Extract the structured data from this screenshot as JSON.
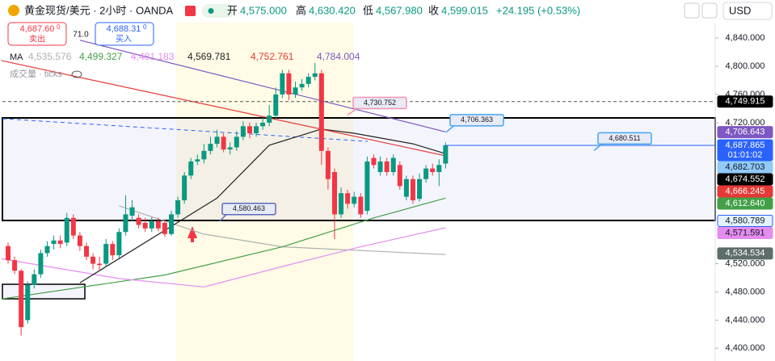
{
  "chart_data": {
    "type": "candlestick",
    "title": "黄金现货/美元 · 2小时 · OANDA",
    "ohlc_header": [
      {
        "key": "开",
        "value": "4,575.000"
      },
      {
        "key": "高",
        "value": "4,630.420"
      },
      {
        "key": "低",
        "value": "4,567.980"
      },
      {
        "key": "收",
        "value": "4,599.015"
      }
    ],
    "change": "+24.195 (+0.53%)",
    "sell": {
      "price": "4,687.60",
      "sup": "0",
      "label": "卖出"
    },
    "spread": "71.0",
    "buy": {
      "price": "4,688.31",
      "sup": "0",
      "label": "买入"
    },
    "currency": "USD",
    "indicator_label": "MA",
    "volume_label": "成交量 · ticks",
    "up_color": "#089981",
    "down_color": "#f23645",
    "ylim": [
      4382,
      4894
    ],
    "yticks": [
      {
        "value": 4840,
        "label": "4,840.000"
      },
      {
        "value": 4800,
        "label": "4,800.000"
      },
      {
        "value": 4760,
        "label": "4,760.000"
      },
      {
        "value": 4720,
        "label": "4,720.000"
      },
      {
        "value": 4520,
        "label": "4,520.000"
      },
      {
        "value": 4480,
        "label": "4,480.000"
      },
      {
        "value": 4440,
        "label": "4,440.000"
      },
      {
        "value": 4400,
        "label": "4,400.000"
      }
    ],
    "open": [
      4545,
      4525,
      4510,
      4440,
      4490,
      4505,
      4535,
      4548,
      4553,
      4550,
      4585,
      4560,
      4545,
      4530,
      4520,
      4520,
      4548,
      4532,
      4565,
      4588,
      4585,
      4578,
      4570,
      4580,
      4578,
      4562,
      4590,
      4610,
      4645,
      4665,
      4668,
      4680,
      4690,
      4700,
      4682,
      4685,
      4700,
      4715,
      4705,
      4715,
      4720,
      4730,
      4760,
      4790,
      4760,
      4770,
      4775,
      4785,
      4790,
      4680,
      4650,
      4590,
      4620,
      4605,
      4615,
      4595,
      4670,
      4650,
      4665,
      4650,
      4660,
      4615,
      4640,
      4612,
      4640,
      4655,
      4650,
      4662
    ],
    "high": [
      4550,
      4530,
      4512,
      4495,
      4512,
      4540,
      4552,
      4560,
      4560,
      4592,
      4590,
      4565,
      4550,
      4535,
      4530,
      4555,
      4552,
      4570,
      4617,
      4610,
      4590,
      4585,
      4586,
      4585,
      4582,
      4595,
      4615,
      4650,
      4670,
      4675,
      4690,
      4700,
      4710,
      4705,
      4692,
      4708,
      4722,
      4720,
      4720,
      4728,
      4745,
      4770,
      4795,
      4795,
      4778,
      4782,
      4790,
      4805,
      4795,
      4685,
      4655,
      4628,
      4625,
      4622,
      4620,
      4672,
      4675,
      4672,
      4670,
      4675,
      4665,
      4645,
      4645,
      4648,
      4660,
      4662,
      4668,
      4692
    ],
    "low": [
      4520,
      4505,
      4418,
      4435,
      4485,
      4500,
      4530,
      4540,
      4542,
      4545,
      4555,
      4538,
      4525,
      4512,
      4510,
      4515,
      4525,
      4528,
      4560,
      4580,
      4570,
      4565,
      4565,
      4566,
      4558,
      4560,
      4585,
      4605,
      4640,
      4660,
      4662,
      4675,
      4685,
      4678,
      4675,
      4680,
      4695,
      4698,
      4700,
      4710,
      4715,
      4725,
      4755,
      4752,
      4755,
      4765,
      4770,
      4780,
      4660,
      4625,
      4555,
      4585,
      4598,
      4600,
      4585,
      4590,
      4655,
      4645,
      4645,
      4645,
      4625,
      4610,
      4605,
      4608,
      4635,
      4645,
      4630,
      4655
    ],
    "close": [
      4525,
      4510,
      4430,
      4490,
      4505,
      4535,
      4545,
      4553,
      4548,
      4585,
      4560,
      4545,
      4530,
      4520,
      4518,
      4548,
      4532,
      4565,
      4590,
      4600,
      4575,
      4570,
      4580,
      4570,
      4562,
      4590,
      4610,
      4645,
      4665,
      4668,
      4680,
      4690,
      4700,
      4682,
      4685,
      4700,
      4715,
      4705,
      4715,
      4720,
      4730,
      4760,
      4790,
      4760,
      4770,
      4775,
      4785,
      4790,
      4680,
      4640,
      4590,
      4620,
      4605,
      4615,
      4590,
      4665,
      4660,
      4665,
      4650,
      4670,
      4630,
      4640,
      4610,
      4640,
      4655,
      4650,
      4660,
      4688
    ],
    "lines": [
      {
        "name": "4,535.576",
        "color": "#b0b0b0",
        "x": [
          17,
          30,
          42,
          67
        ],
        "values": [
          4602,
          4562,
          4544,
          4533
        ]
      },
      {
        "name": "4,499.327",
        "color": "#43a047",
        "x": [
          -1,
          24,
          42,
          56,
          67
        ],
        "values": [
          4470,
          4504,
          4544,
          4585,
          4613
        ]
      },
      {
        "name": "4,481.183",
        "color": "#e58cf0",
        "x": [
          -1,
          17,
          30,
          42,
          54,
          67
        ],
        "values": [
          4527,
          4499,
          4487,
          4516,
          4544,
          4571
        ]
      },
      {
        "name": "4,569.781",
        "color": "#222222",
        "x": [
          11,
          32,
          40,
          48,
          53,
          62,
          67
        ],
        "values": [
          4493,
          4613,
          4688,
          4711,
          4705,
          4690,
          4676
        ]
      },
      {
        "name": "4,752.761",
        "color": "#e53935",
        "x": [
          -1,
          67
        ],
        "values": [
          4808,
          4673
        ]
      },
      {
        "name": "4,784.004",
        "color": "#7e57c2",
        "x": [
          11,
          67
        ],
        "values": [
          4837,
          4707
        ]
      }
    ],
    "callouts": [
      {
        "value": 4730.752,
        "label": "4,730.752",
        "color": "#f48fb1"
      },
      {
        "value": 4706.363,
        "label": "4,706.363",
        "color": "#42a5f5"
      },
      {
        "value": 4680.511,
        "label": "4,680.511",
        "color": "#42a5f5"
      },
      {
        "value": 4580.463,
        "label": "4,580.463",
        "color": "#5c6bc0"
      }
    ],
    "price_labels": [
      {
        "value": 4749.915,
        "label": "4,749.915",
        "bg": "#000000",
        "fg": "#ffffff"
      },
      {
        "value": 4706.643,
        "label": "4,706.643",
        "bg": "#7e57c2",
        "fg": "#ffffff"
      },
      {
        "value": 4687.865,
        "label": "4,687.865",
        "bg": "#2962ff",
        "fg": "#ffffff",
        "timer": "01:01:02"
      },
      {
        "value": 4682.703,
        "label": "4,682.703",
        "bg": "#90caf9",
        "fg": "#131722"
      },
      {
        "value": 4674.552,
        "label": "4,674.552",
        "bg": "#000000",
        "fg": "#ffffff"
      },
      {
        "value": 4666.245,
        "label": "4,666.245",
        "bg": "#e53935",
        "fg": "#ffffff"
      },
      {
        "value": 4612.64,
        "label": "4,612.640",
        "bg": "#43a047",
        "fg": "#ffffff"
      },
      {
        "value": 4580.789,
        "label": "4,580.789",
        "bg": "#e3f2fd",
        "fg": "#131722"
      },
      {
        "value": 4571.591,
        "label": "4,571.591",
        "bg": "#e58cf0",
        "fg": "#131722"
      },
      {
        "value": 4534.534,
        "label": "4,534.534",
        "bg": "#5d6d6a",
        "fg": "#ffffff"
      }
    ]
  }
}
